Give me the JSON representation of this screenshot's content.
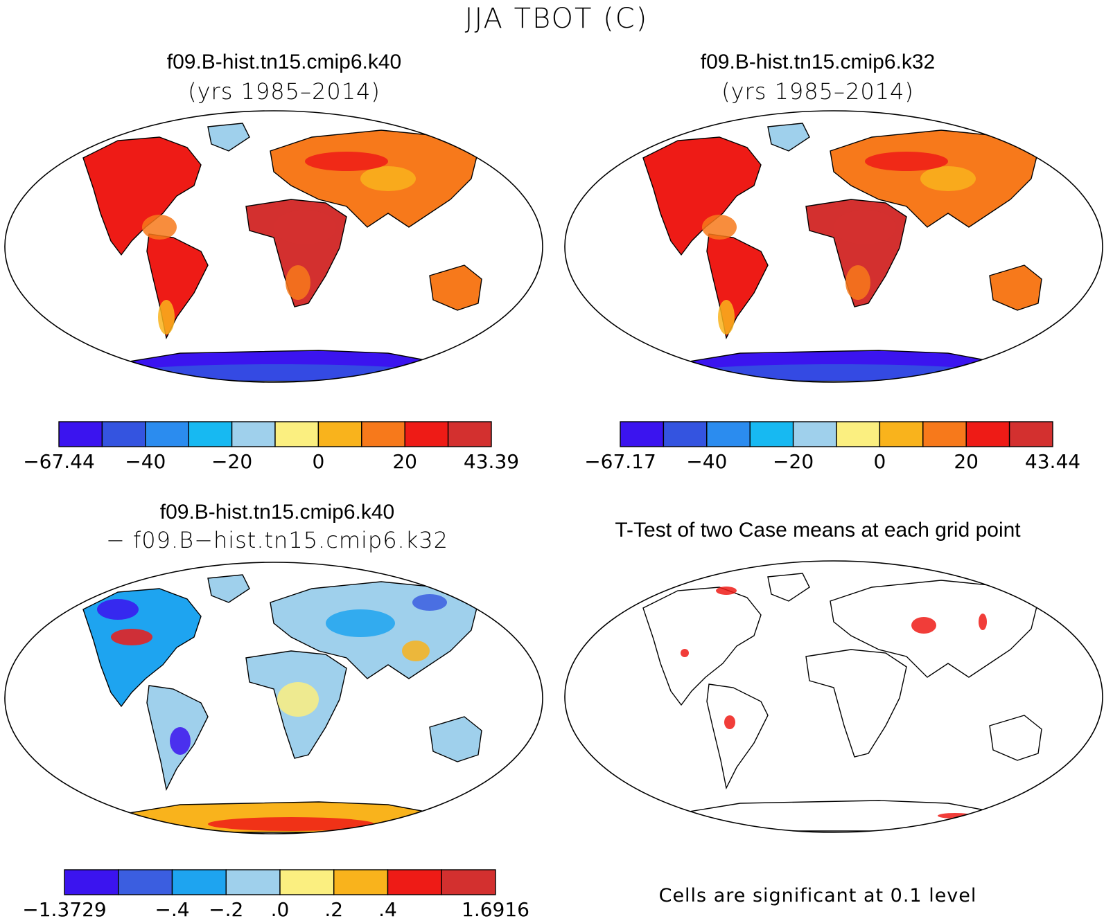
{
  "title": "JJA TBOT (C)",
  "panels": [
    {
      "id": "case1",
      "title": "f09.B-hist.tn15.cmip6.k40",
      "subtitle": "(yrs 1985–2014)",
      "colorbar": {
        "colors": [
          "#3b14ef",
          "#3454e0",
          "#2b8cef",
          "#17b9f2",
          "#9fd0ec",
          "#fbef80",
          "#f9b31c",
          "#f7791b",
          "#ee1b16",
          "#d3302f"
        ],
        "labels": [
          "−67.44",
          "−40",
          "−20",
          "0",
          "20",
          "43.39"
        ],
        "label_positions": [
          0,
          2,
          4,
          6,
          8,
          10
        ]
      }
    },
    {
      "id": "case2",
      "title": "f09.B-hist.tn15.cmip6.k32",
      "subtitle": "(yrs 1985–2014)",
      "colorbar": {
        "colors": [
          "#3b14ef",
          "#3454e0",
          "#2b8cef",
          "#17b9f2",
          "#9fd0ec",
          "#fbef80",
          "#f9b31c",
          "#f7791b",
          "#ee1b16",
          "#d3302f"
        ],
        "labels": [
          "−67.17",
          "−40",
          "−20",
          "0",
          "20",
          "43.44"
        ],
        "label_positions": [
          0,
          2,
          4,
          6,
          8,
          10
        ]
      }
    },
    {
      "id": "diff",
      "title": "f09.B-hist.tn15.cmip6.k40",
      "subtitle": "− f09.B−hist.tn15.cmip6.k32",
      "colorbar": {
        "colors": [
          "#3b14ef",
          "#3b5ee0",
          "#1ea4f0",
          "#9fd0ec",
          "#fbef80",
          "#f9b31c",
          "#ee1b16",
          "#d3302f"
        ],
        "labels": [
          "−1.3729",
          "−.4",
          "−.2",
          ".0",
          ".2",
          ".4",
          "1.6916"
        ],
        "label_positions": [
          0,
          2,
          3,
          4,
          5,
          6,
          8
        ]
      }
    },
    {
      "id": "ttest",
      "title": "T-Test of two Case means at each grid point",
      "note": "Cells are significant at 0.1 level",
      "significant_color": "#ee1b16"
    }
  ]
}
